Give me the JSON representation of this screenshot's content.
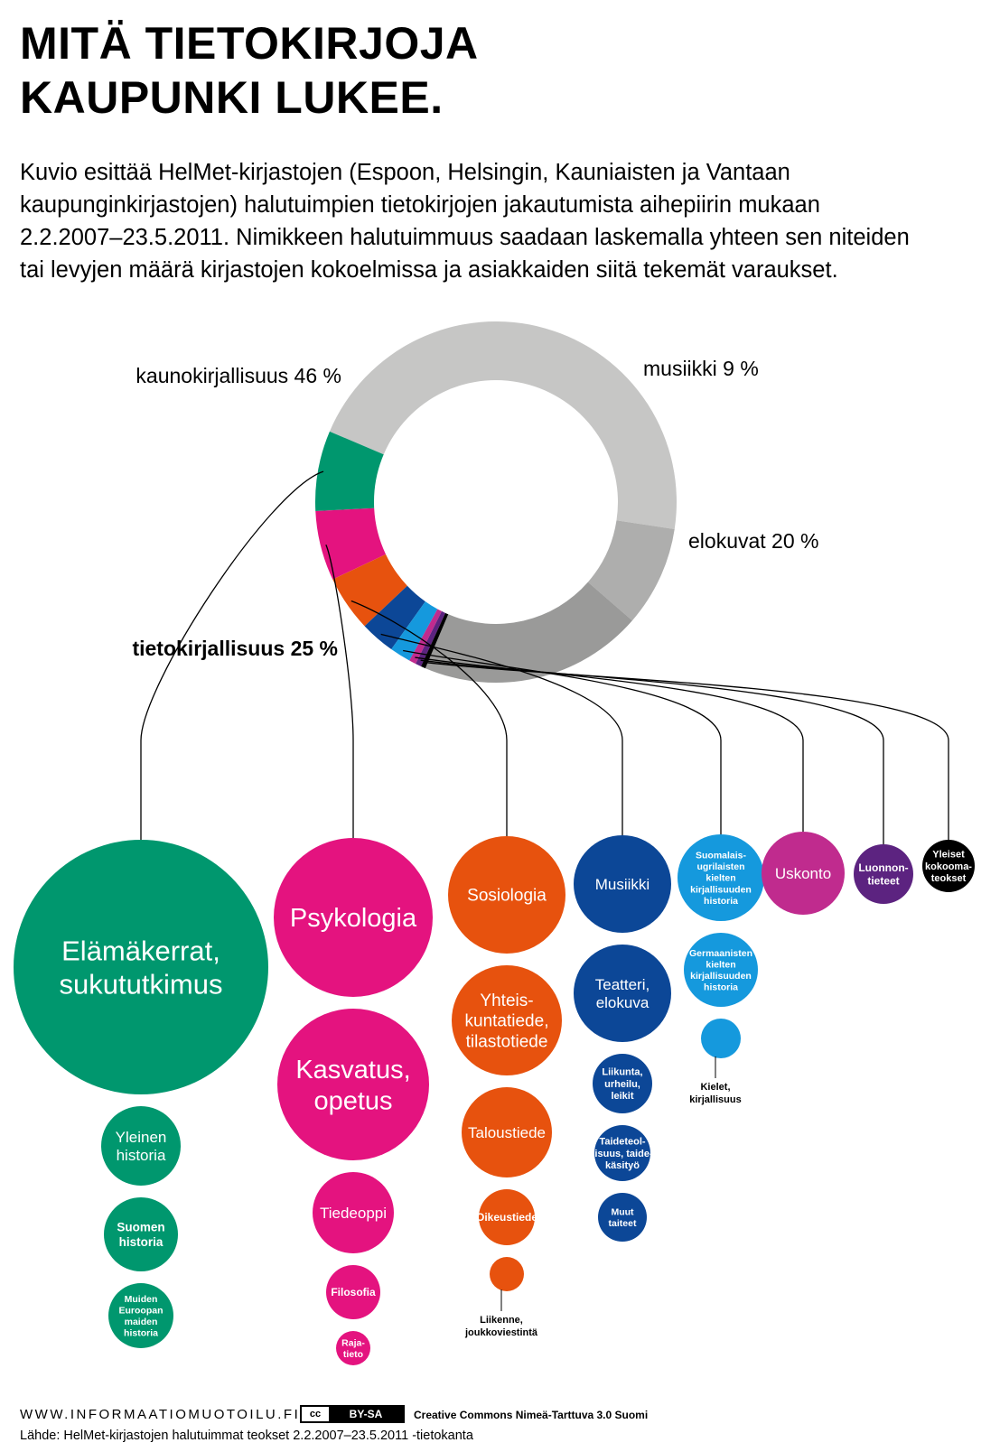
{
  "title_lines": [
    "MITÄ TIETOKIRJOJA",
    "KAUPUNKI LUKEE."
  ],
  "intro_lines": [
    "Kuvio esittää HelMet-kirjastojen (Espoon, Helsingin, Kauniaisten ja Vantaan",
    "kaupunginkirjastojen) halutuimpien tietokirjojen jakautumista aihepiirin mukaan",
    "2.2.2007–23.5.2011. Nimikkeen halutuimmuus saadaan laskemalla yhteen sen niteiden",
    "tai levyjen määrä kirjastojen kokoelmissa ja asiakkaiden siitä tekemät varaukset."
  ],
  "chart_data": {
    "type": "donut-with-bubbles",
    "donut": {
      "segments": [
        {
          "name": "kaunokirjallisuus",
          "value": 46,
          "label": "kaunokirjallisuus 46 %",
          "color": "#c6c6c5"
        },
        {
          "name": "musiikki",
          "value": 9,
          "label": "musiikki 9 %",
          "color": "#aeaead"
        },
        {
          "name": "elokuvat",
          "value": 20,
          "label": "elokuvat 20 %",
          "color": "#9a9a99"
        },
        {
          "name": "tietokirjallisuus",
          "value": 25,
          "label": "tietokirjallisuus 25 %",
          "color": "#00976e"
        }
      ],
      "nonfiction_breakdown": [
        {
          "name": "Historia",
          "value": 6.9,
          "color": "#00976e"
        },
        {
          "name": "Psykologia ja kasvatus",
          "value": 6.0,
          "color": "#e4137f"
        },
        {
          "name": "Yhteiskunta",
          "value": 4.8,
          "color": "#e7520e"
        },
        {
          "name": "Taiteet",
          "value": 3.0,
          "color": "#0c4797"
        },
        {
          "name": "Kirjallisuus",
          "value": 1.8,
          "color": "#1599dd"
        },
        {
          "name": "Uskonto",
          "value": 0.6,
          "color": "#c02b8e"
        },
        {
          "name": "Luonnontieteet",
          "value": 0.5,
          "color": "#5c2380"
        },
        {
          "name": "Yleiset kokoomateokset",
          "value": 0.4,
          "color": "#000000"
        }
      ]
    },
    "columns": [
      {
        "color": "#00976e",
        "bubbles": [
          {
            "lines": [
              "Elämäkerrat,",
              "sukututkimus"
            ],
            "value": 141
          },
          {
            "lines": [
              "Yleinen",
              "historia"
            ],
            "value": 44
          },
          {
            "lines": [
              "Suomen",
              "historia"
            ],
            "value": 41
          },
          {
            "lines": [
              "Muiden",
              "Euroopan",
              "maiden",
              "historia"
            ],
            "value": 36
          }
        ]
      },
      {
        "color": "#e4137f",
        "bubbles": [
          {
            "lines": [
              "Psykologia"
            ],
            "value": 88
          },
          {
            "lines": [
              "Kasvatus,",
              "opetus"
            ],
            "value": 84
          },
          {
            "lines": [
              "Tiedeoppi"
            ],
            "value": 45
          },
          {
            "lines": [
              "Filosofia"
            ],
            "value": 30
          },
          {
            "lines": [
              "Raja-",
              "tieto"
            ],
            "value": 19
          }
        ]
      },
      {
        "color": "#e7520e",
        "bubbles": [
          {
            "lines": [
              "Sosiologia"
            ],
            "value": 65
          },
          {
            "lines": [
              "Yhteis-",
              "kuntatiede,",
              "tilastotiede"
            ],
            "value": 61
          },
          {
            "lines": [
              "Taloustiede"
            ],
            "value": 50
          },
          {
            "lines": [
              "Oikeustiede"
            ],
            "value": 31
          },
          {
            "lines": [],
            "value": 19,
            "caption": [
              "Liikenne,",
              "joukkoviestintä"
            ]
          }
        ]
      },
      {
        "color": "#0c4797",
        "bubbles": [
          {
            "lines": [
              "Musiikki"
            ],
            "value": 54
          },
          {
            "lines": [
              "Teatteri,",
              "elokuva"
            ],
            "value": 54
          },
          {
            "lines": [
              "Liikunta,",
              "urheilu,",
              "leikit"
            ],
            "value": 33
          },
          {
            "lines": [
              "Taideteol-",
              "lisuus, taide-",
              "käsityö"
            ],
            "value": 31
          },
          {
            "lines": [
              "Muut",
              "taiteet"
            ],
            "value": 27
          }
        ]
      },
      {
        "color": "#1599dd",
        "bubbles": [
          {
            "lines": [
              "Suomalais-",
              "ugrilaisten",
              "kielten",
              "kirjallisuuden",
              "historia"
            ],
            "value": 48
          },
          {
            "lines": [
              "Germaanisten",
              "kielten",
              "kirjallisuuden",
              "historia"
            ],
            "value": 41
          },
          {
            "lines": [],
            "value": 22,
            "caption": [
              "Kielet,",
              "kirjallisuus"
            ]
          }
        ]
      },
      {
        "color": "#c02b8e",
        "bubbles": [
          {
            "lines": [
              "Uskonto"
            ],
            "value": 46
          }
        ]
      },
      {
        "color": "#5c2380",
        "bubbles": [
          {
            "lines": [
              "Luonnon-",
              "tieteet"
            ],
            "value": 33
          }
        ]
      },
      {
        "color": "#000000",
        "bubbles": [
          {
            "lines": [
              "Yleiset",
              "kokooma-",
              "teokset"
            ],
            "value": 29
          }
        ]
      }
    ]
  },
  "footer": {
    "site": "WWW.INFORMAATIOMUOTOILU.FI",
    "cc_icon": "cc",
    "cc_label": "BY-SA",
    "license": "Creative Commons Nimeä-Tarttuva 3.0 Suomi",
    "source": "Lähde:  HelMet-kirjastojen halutuimmat teokset 2.2.2007–23.5.2011 -tietokanta"
  }
}
